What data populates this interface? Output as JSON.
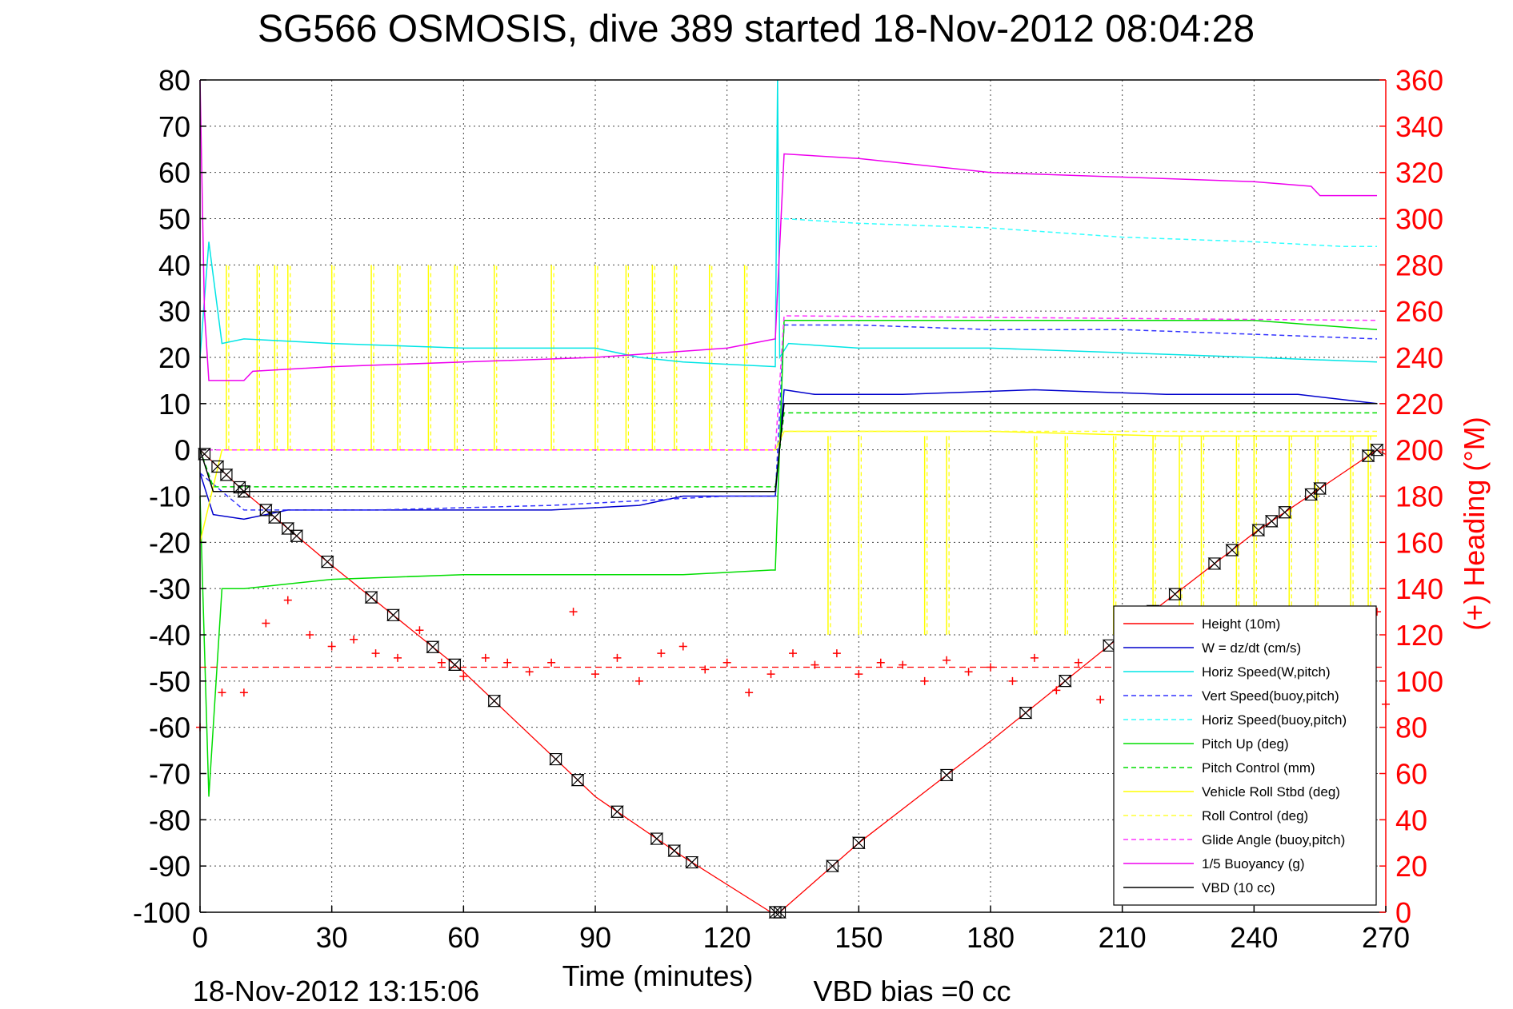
{
  "chart_data": {
    "type": "line",
    "title": "SG566 OSMOSIS, dive 389 started 18-Nov-2012 08:04:28",
    "xlabel": "Time (minutes)",
    "ylabel_right": "(+) Heading (°M)",
    "footer_left": "18-Nov-2012 13:15:06",
    "footer_right": "VBD bias =0 cc",
    "xlim": [
      0,
      270
    ],
    "ylim": [
      -100,
      80
    ],
    "y2lim": [
      0,
      360
    ],
    "xticks": [
      "0",
      "30",
      "60",
      "90",
      "120",
      "150",
      "180",
      "210",
      "240",
      "270"
    ],
    "yticks": [
      "80",
      "70",
      "60",
      "50",
      "40",
      "30",
      "20",
      "10",
      "0",
      "-10",
      "-20",
      "-30",
      "-40",
      "-50",
      "-60",
      "-70",
      "-80",
      "-90",
      "-100"
    ],
    "y2ticks": [
      "360",
      "340",
      "320",
      "300",
      "280",
      "260",
      "240",
      "220",
      "200",
      "180",
      "160",
      "140",
      "120",
      "100",
      "80",
      "60",
      "40",
      "20",
      "0"
    ],
    "grid": true,
    "legend_position": "bottom-right",
    "colors": {
      "height": "#ff0000",
      "w": "#0000cc",
      "horiz_wp": "#00e5e5",
      "vert_bp": "#3333ff",
      "horiz_bp": "#33ffff",
      "pitch_up": "#00dd00",
      "pitch_control": "#00dd00",
      "roll": "#ffff00",
      "roll_control": "#ffff33",
      "glide": "#ff33ff",
      "buoyancy": "#ee00ee",
      "vbd": "#000000",
      "heading": "#ff0000",
      "axis2": "#ff0000"
    },
    "series": [
      {
        "name": "Height (10m)",
        "key": "height",
        "dash": "",
        "x": [
          0,
          10,
          30,
          60,
          90,
          110,
          130,
          132,
          150,
          180,
          210,
          240,
          268,
          270
        ],
        "y": [
          0,
          -9,
          -25,
          -48,
          -75,
          -88,
          -100,
          -100,
          -85,
          -63,
          -40,
          -18,
          0,
          -1
        ]
      },
      {
        "name": "W = dz/dt (cm/s)",
        "key": "w",
        "dash": "",
        "x": [
          0,
          3,
          10,
          20,
          40,
          60,
          80,
          100,
          110,
          131,
          133,
          140,
          160,
          190,
          220,
          250,
          268
        ],
        "y": [
          -5,
          -14,
          -15,
          -13,
          -13,
          -13,
          -13,
          -12,
          -10,
          -10,
          13,
          12,
          12,
          13,
          12,
          12,
          10
        ]
      },
      {
        "name": "Horiz Speed(W,pitch)",
        "key": "horiz_wp",
        "dash": "",
        "x": [
          0,
          2,
          5,
          10,
          30,
          60,
          90,
          100,
          110,
          131,
          131.5,
          132,
          134,
          150,
          180,
          210,
          240,
          268
        ],
        "y": [
          20,
          45,
          23,
          24,
          23,
          22,
          22,
          20,
          19,
          18,
          80,
          20,
          23,
          22,
          22,
          21,
          20,
          19
        ]
      },
      {
        "name": "Vert Speed(buoy,pitch)",
        "key": "vert_bp",
        "dash": "6,4",
        "x": [
          0,
          10,
          40,
          80,
          120,
          131,
          133,
          150,
          180,
          210,
          240,
          268
        ],
        "y": [
          -5,
          -13,
          -13,
          -12,
          -10,
          -10,
          27,
          27,
          26,
          26,
          25,
          24
        ]
      },
      {
        "name": "Horiz Speed(buoy,pitch)",
        "key": "horiz_bp",
        "dash": "6,4",
        "x": [
          133,
          150,
          180,
          210,
          240,
          260,
          268
        ],
        "y": [
          50,
          49,
          48,
          46,
          45,
          44,
          44
        ]
      },
      {
        "name": "Pitch Up (deg)",
        "key": "pitch_up",
        "dash": "",
        "x": [
          0,
          2,
          5,
          10,
          30,
          60,
          90,
          110,
          130,
          131,
          133,
          150,
          180,
          210,
          240,
          268
        ],
        "y": [
          -10,
          -75,
          -30,
          -30,
          -28,
          -27,
          -27,
          -27,
          -26,
          -26,
          28,
          28,
          28,
          28,
          28,
          26
        ]
      },
      {
        "name": "Pitch Control (mm)",
        "key": "pitch_control",
        "dash": "6,4",
        "x": [
          0,
          3,
          131,
          133,
          268
        ],
        "y": [
          0,
          -8,
          -8,
          8,
          8
        ]
      },
      {
        "name": "Vehicle Roll Stbd (deg)",
        "key": "roll",
        "dash": "",
        "x": [
          0,
          5,
          20,
          60,
          100,
          131,
          133,
          180,
          220,
          268
        ],
        "y": [
          -20,
          0,
          0,
          0,
          0,
          0,
          4,
          4,
          3,
          3
        ]
      },
      {
        "name": "Roll Control (deg)",
        "key": "roll_control",
        "dash": "6,4",
        "x": [
          0,
          131,
          133,
          268
        ],
        "y": [
          0,
          0,
          4,
          4
        ]
      },
      {
        "name": "Glide Angle (buoy,pitch)",
        "key": "glide",
        "dash": "6,4",
        "x": [
          0,
          131,
          133,
          268
        ],
        "y": [
          0,
          0,
          29,
          28
        ]
      },
      {
        "name": "1/5 Buoyancy (g)",
        "key": "buoyancy",
        "dash": "",
        "x": [
          0,
          1,
          2,
          10,
          12,
          30,
          60,
          90,
          120,
          131,
          133,
          150,
          180,
          210,
          240,
          253,
          255,
          268
        ],
        "y": [
          80,
          30,
          15,
          15,
          17,
          18,
          19,
          20,
          22,
          24,
          64,
          63,
          60,
          59,
          58,
          57,
          55,
          55
        ]
      },
      {
        "name": "VBD (10 cc)",
        "key": "vbd",
        "dash": "",
        "x": [
          0,
          3,
          128,
          131,
          133,
          140,
          268
        ],
        "y": [
          0,
          -9,
          -9,
          -9,
          10,
          10,
          10
        ]
      }
    ],
    "roll_spikes_x": [
      6,
      13,
      17,
      20,
      30,
      39,
      45,
      52,
      58,
      67,
      80,
      90,
      97,
      103,
      108,
      116,
      124,
      143,
      150,
      165,
      170,
      190,
      197,
      208,
      217,
      223,
      228,
      236,
      240,
      248,
      254,
      262,
      266
    ],
    "heading_x": [
      0,
      5,
      10,
      15,
      20,
      25,
      30,
      35,
      40,
      45,
      50,
      55,
      60,
      65,
      70,
      75,
      80,
      85,
      90,
      95,
      100,
      105,
      110,
      115,
      120,
      125,
      130,
      135,
      140,
      145,
      150,
      155,
      160,
      165,
      170,
      175,
      180,
      185,
      190,
      195,
      200,
      205,
      210,
      268,
      270
    ],
    "heading_y": [
      80,
      95,
      95,
      125,
      135,
      120,
      115,
      118,
      112,
      110,
      122,
      108,
      102,
      110,
      108,
      104,
      108,
      130,
      103,
      110,
      100,
      112,
      115,
      105,
      108,
      95,
      103,
      112,
      107,
      112,
      103,
      108,
      107,
      100,
      109,
      104,
      106,
      100,
      110,
      96,
      108,
      92,
      100,
      130,
      90
    ],
    "heading_dashed": 106,
    "height_markers_x": [
      1,
      4,
      6,
      9,
      10,
      15,
      17,
      20,
      22,
      29,
      39,
      44,
      53,
      58,
      67,
      81,
      86,
      95,
      104,
      108,
      112,
      131,
      132,
      144,
      150,
      170,
      188,
      197,
      207,
      217,
      222,
      231,
      235,
      241,
      244,
      247,
      253,
      255,
      266,
      268
    ]
  }
}
